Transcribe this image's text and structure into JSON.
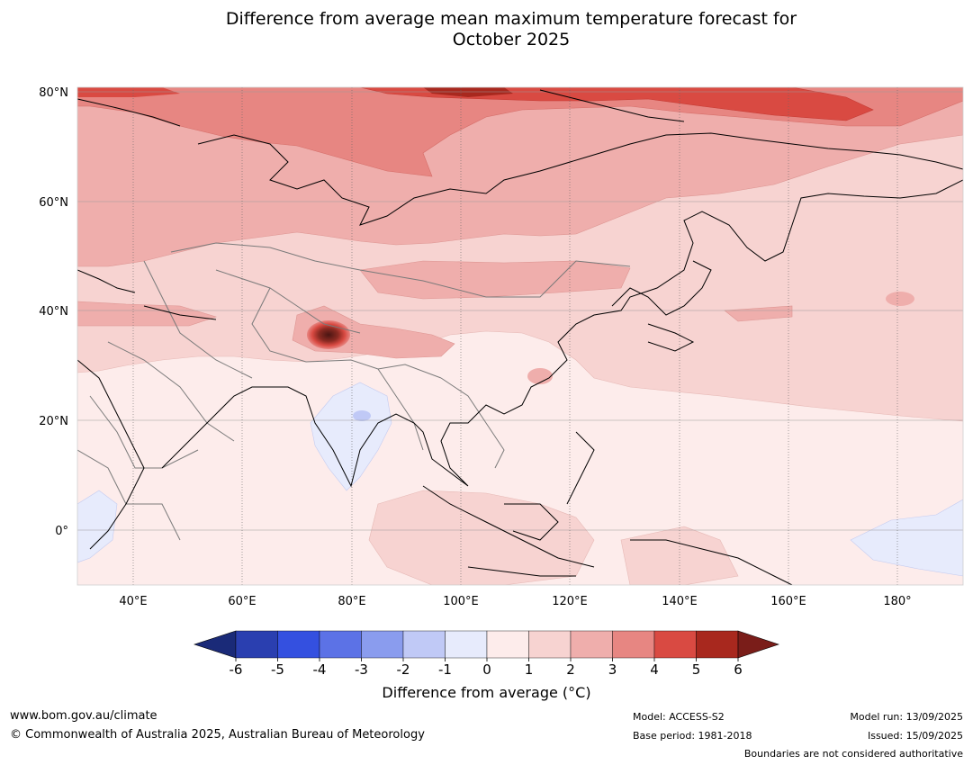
{
  "title": "Difference from average mean maximum temperature forecast for October 2025",
  "title_lines": [
    "Difference from average mean maximum temperature forecast for",
    "October 2025"
  ],
  "map": {
    "lat_labels": [
      "80°N",
      "60°N",
      "40°N",
      "20°N",
      "0°"
    ],
    "lon_labels": [
      "40°E",
      "60°E",
      "80°E",
      "100°E",
      "120°E",
      "140°E",
      "160°E",
      "180°"
    ],
    "extent": {
      "lon_min": 30,
      "lon_max": 192,
      "lat_min": -10,
      "lat_max": 81
    }
  },
  "colorbar": {
    "label": "Difference from average (°C)",
    "ticks": [
      "-6",
      "-5",
      "-4",
      "-3",
      "-2",
      "-1",
      "0",
      "1",
      "2",
      "3",
      "4",
      "5",
      "6"
    ],
    "colors": [
      "#1a2a78",
      "#2a3fb0",
      "#3450e0",
      "#5c72e6",
      "#8a9cee",
      "#c0c9f6",
      "#e7ebfc",
      "#fdeceb",
      "#f7d3d1",
      "#efaeac",
      "#e78682",
      "#d94a42",
      "#a8281e",
      "#7a1d19"
    ]
  },
  "footer": {
    "url": "www.bom.gov.au/climate",
    "copyright": "© Commonwealth of Australia 2025, Australian Bureau of Meteorology",
    "model": "Model: ACCESS-S2",
    "base_period": "Base period: 1981-2018",
    "model_run": "Model run: 13/09/2025",
    "issued": "Issued: 15/09/2025",
    "disclaimer": "Boundaries are not considered authoritative"
  }
}
